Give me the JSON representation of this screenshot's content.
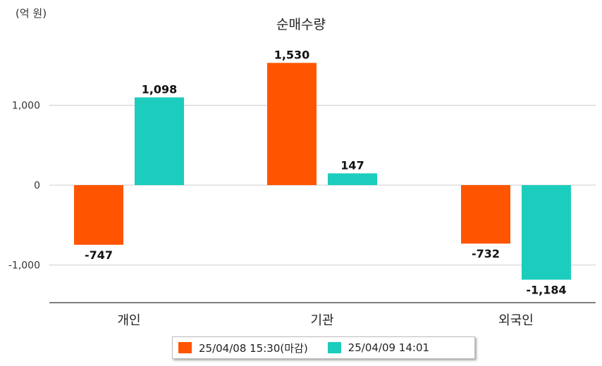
{
  "chart_data": {
    "type": "bar",
    "title": "순매수량",
    "unit": "(억 원)",
    "categories": [
      "개인",
      "기관",
      "외국인"
    ],
    "series": [
      {
        "name": "25/04/08 15:30(마감)",
        "color": "#ff5500",
        "values": [
          -747,
          1530,
          -732
        ],
        "labels": [
          "-747",
          "1,530",
          "-732"
        ]
      },
      {
        "name": "25/04/09 14:01",
        "color": "#1ccdbd",
        "values": [
          1098,
          147,
          -1184
        ],
        "labels": [
          "1,098",
          "147",
          "-1,184"
        ]
      }
    ],
    "y_ticks": [
      1000,
      0,
      -1000
    ],
    "y_tick_labels": [
      "1,000",
      "0",
      "-1,000"
    ],
    "ylim": [
      -1470,
      1880
    ],
    "grid": true,
    "legend_position": "bottom"
  }
}
